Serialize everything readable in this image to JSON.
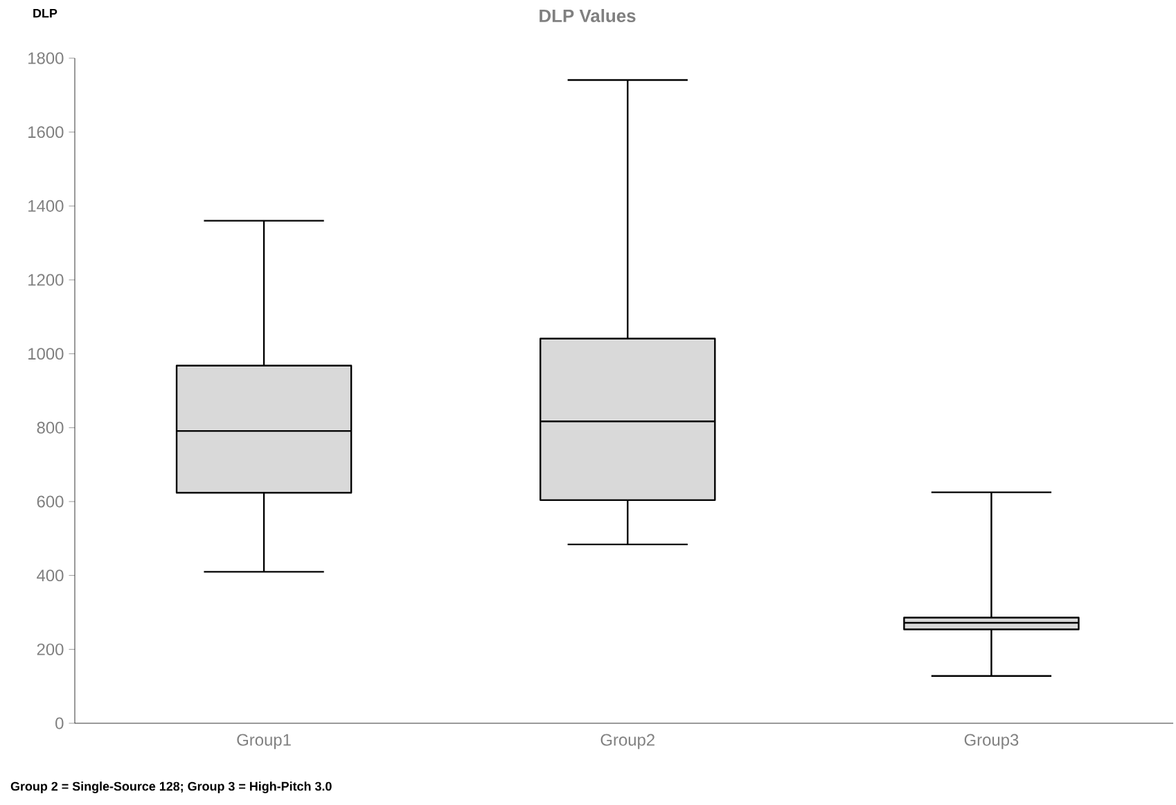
{
  "chart_data": {
    "type": "box",
    "title": "DLP Values",
    "ylabel": "DLP",
    "categories": [
      "Group1",
      "Group2",
      "Group3"
    ],
    "boxes": [
      {
        "low": 410,
        "q1": 624,
        "median": 791,
        "q3": 968,
        "high": 1360
      },
      {
        "low": 484,
        "q1": 604,
        "median": 817,
        "q3": 1041,
        "high": 1741
      },
      {
        "low": 128,
        "q1": 254,
        "median": 272,
        "q3": 286,
        "high": 625
      }
    ],
    "color": "#d9d9d9",
    "ylim": [
      0,
      1800
    ],
    "yticks": [
      0,
      200,
      400,
      600,
      800,
      1000,
      1200,
      1400,
      1600,
      1800
    ],
    "grid": false,
    "annotations": [
      "Group 2 = Single-Source 128; Group 3 = High-Pitch 3.0"
    ]
  }
}
